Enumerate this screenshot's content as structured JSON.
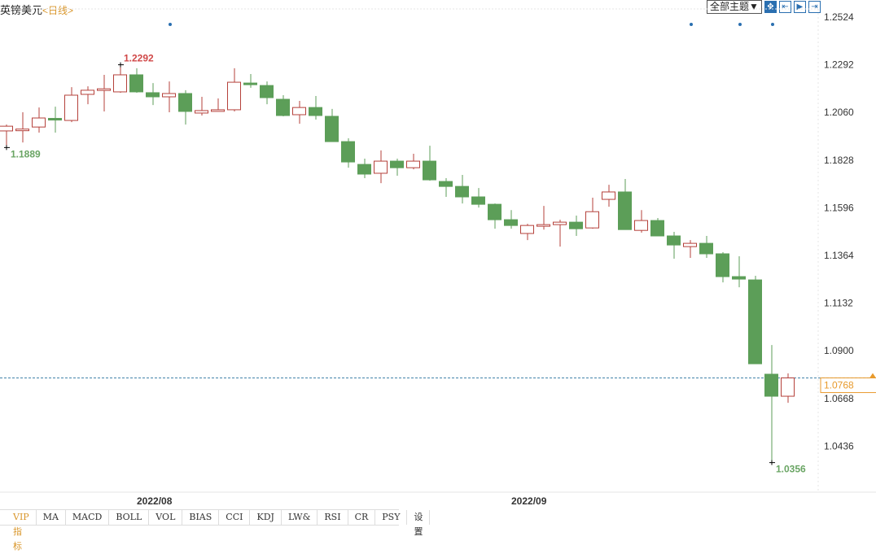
{
  "header": {
    "symbol": "英镑美元",
    "period": "<日线>"
  },
  "toolbar": {
    "theme_label": "全部主题▼",
    "icons": [
      "crosshair-icon",
      "zoom-range-icon",
      "play-icon",
      "jump-end-icon"
    ]
  },
  "tabs": [
    "VIP指标",
    "MA",
    "MACD",
    "BOLL",
    "VOL",
    "BIAS",
    "CCI",
    "KDJ",
    "LW&",
    "RSI",
    "CR",
    "PSY",
    "设置"
  ],
  "colors": {
    "up": "#b5413b",
    "down": "#5c9e58",
    "current": "#e89a2c",
    "axis_text": "#333333",
    "marker": "#2a6fb0"
  },
  "chart_data": {
    "type": "candlestick",
    "title": "",
    "ylim": [
      1.03,
      1.2524
    ],
    "y_ticks": [
      "1.2524",
      "1.2292",
      "1.2060",
      "1.1828",
      "1.1596",
      "1.1364",
      "1.1132",
      "1.0900",
      "1.0668",
      "1.0436"
    ],
    "x_tick_labels": [
      {
        "label": "2022/08",
        "index": 8
      },
      {
        "label": "2022/09",
        "index": 31
      }
    ],
    "grid": false,
    "current_price": "1.0768",
    "max_label": "1.2292",
    "min_labels": [
      {
        "label": "1.1889",
        "index": 0
      },
      {
        "label": "1.0356",
        "index": 47
      }
    ],
    "max_index": 7,
    "event_marker_indices": [
      10,
      42,
      45,
      47
    ],
    "ohlc": [
      [
        1.197,
        1.2001,
        1.1889,
        1.1993
      ],
      [
        1.1975,
        1.2061,
        1.1914,
        1.1979
      ],
      [
        1.1989,
        1.2084,
        1.1962,
        1.2033
      ],
      [
        1.2031,
        1.2088,
        1.1962,
        1.2023
      ],
      [
        1.2021,
        1.2183,
        1.2013,
        1.2144
      ],
      [
        1.2148,
        1.2187,
        1.21,
        1.2168
      ],
      [
        1.2171,
        1.2243,
        1.2065,
        1.2175
      ],
      [
        1.216,
        1.2292,
        1.2156,
        1.2243
      ],
      [
        1.2243,
        1.2275,
        1.2156,
        1.216
      ],
      [
        1.2156,
        1.2203,
        1.2096,
        1.2136
      ],
      [
        1.2136,
        1.2211,
        1.2061,
        1.2152
      ],
      [
        1.2152,
        1.2168,
        1.2001,
        1.2065
      ],
      [
        1.2057,
        1.2136,
        1.2045,
        1.2069
      ],
      [
        1.2071,
        1.2128,
        1.2065,
        1.2073
      ],
      [
        1.2073,
        1.2275,
        1.2065,
        1.2207
      ],
      [
        1.2203,
        1.2247,
        1.218,
        1.2195
      ],
      [
        1.2191,
        1.2211,
        1.21,
        1.2132
      ],
      [
        1.2124,
        1.2144,
        1.2041,
        1.2045
      ],
      [
        1.2049,
        1.2116,
        1.2005,
        1.2084
      ],
      [
        1.2084,
        1.214,
        1.2025,
        1.2045
      ],
      [
        1.2041,
        1.2077,
        1.1918,
        1.1918
      ],
      [
        1.1918,
        1.1934,
        1.1791,
        1.1819
      ],
      [
        1.1807,
        1.1835,
        1.174,
        1.176
      ],
      [
        1.1764,
        1.1875,
        1.1716,
        1.1823
      ],
      [
        1.1823,
        1.1835,
        1.1752,
        1.1791
      ],
      [
        1.1791,
        1.1859,
        1.1783,
        1.1823
      ],
      [
        1.1823,
        1.1898,
        1.1728,
        1.1732
      ],
      [
        1.1724,
        1.174,
        1.1649,
        1.17
      ],
      [
        1.17,
        1.1756,
        1.1617,
        1.1649
      ],
      [
        1.1649,
        1.1692,
        1.1597,
        1.1613
      ],
      [
        1.1613,
        1.1617,
        1.1494,
        1.1538
      ],
      [
        1.1538,
        1.1585,
        1.1494,
        1.151
      ],
      [
        1.1471,
        1.1518,
        1.1439,
        1.151
      ],
      [
        1.1512,
        1.1605,
        1.149,
        1.1514
      ],
      [
        1.1514,
        1.1538,
        1.1407,
        1.1526
      ],
      [
        1.1526,
        1.1558,
        1.1459,
        1.1494
      ],
      [
        1.1498,
        1.1645,
        1.1494,
        1.1577
      ],
      [
        1.1637,
        1.1708,
        1.1601,
        1.1673
      ],
      [
        1.1673,
        1.1736,
        1.149,
        1.149
      ],
      [
        1.1486,
        1.1585,
        1.1475,
        1.1534
      ],
      [
        1.1534,
        1.1546,
        1.1459,
        1.1459
      ],
      [
        1.1459,
        1.1479,
        1.1348,
        1.1415
      ],
      [
        1.1407,
        1.1439,
        1.1352,
        1.1423
      ],
      [
        1.1423,
        1.1459,
        1.1352,
        1.1372
      ],
      [
        1.1372,
        1.138,
        1.1233,
        1.1261
      ],
      [
        1.1261,
        1.136,
        1.1209,
        1.1249
      ],
      [
        1.1245,
        1.1265,
        1.0837,
        1.0837
      ],
      [
        1.0786,
        1.0928,
        1.0356,
        1.0679
      ],
      [
        1.0679,
        1.079,
        1.0647,
        1.0768
      ]
    ]
  }
}
